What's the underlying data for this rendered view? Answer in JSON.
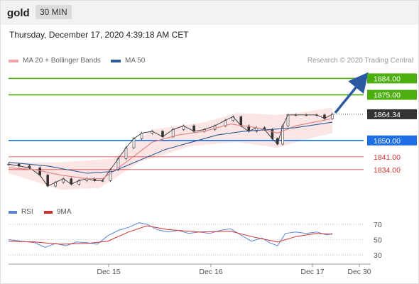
{
  "header": {
    "symbol": "gold",
    "timeframe": "30 MIN"
  },
  "timestamp": "Thursday, December 17, 2020 4:39:18 AM CET",
  "legend": {
    "ma20": "MA 20 + Bollinger Bands",
    "ma50": "MA 50",
    "credit": "Research © 2020 Trading Central",
    "ma20_color": "#f08080",
    "ma50_color": "#2c5a9a"
  },
  "rsi_legend": {
    "rsi": "RSI",
    "ma9": "9MA",
    "rsi_color": "#5b85d8",
    "ma9_color": "#d32f2f"
  },
  "chart_data": [
    {
      "type": "candlestick",
      "title": "gold 30 MIN",
      "x_tick_labels": [
        "Dec 15",
        "Dec 16",
        "Dec 17",
        "Dec 30"
      ],
      "ylim": [
        1818,
        1890
      ],
      "grid": false,
      "legend_position": "top-left",
      "price_levels": [
        {
          "label": "1884.00",
          "value": 1884.0,
          "color": "#4caf0f",
          "kind": "target"
        },
        {
          "label": "1875.00",
          "value": 1875.0,
          "color": "#4caf0f",
          "kind": "resistance"
        },
        {
          "label": "1864.34",
          "value": 1864.34,
          "color": "#333333",
          "kind": "last"
        },
        {
          "label": "1850.00",
          "value": 1850.0,
          "color": "#1e6ee6",
          "kind": "pivot"
        },
        {
          "label": "1841.00",
          "value": 1841.0,
          "color": "#d32f2f",
          "kind": "support"
        },
        {
          "label": "1834.00",
          "value": 1834.0,
          "color": "#d32f2f",
          "kind": "support"
        }
      ],
      "close_path": [
        {
          "x": 0,
          "y": 1837
        },
        {
          "x": 8,
          "y": 1836
        },
        {
          "x": 16,
          "y": 1835
        },
        {
          "x": 24,
          "y": 1831
        },
        {
          "x": 30,
          "y": 1825
        },
        {
          "x": 36,
          "y": 1827
        },
        {
          "x": 42,
          "y": 1829
        },
        {
          "x": 48,
          "y": 1826
        },
        {
          "x": 54,
          "y": 1828
        },
        {
          "x": 60,
          "y": 1829
        },
        {
          "x": 66,
          "y": 1828
        },
        {
          "x": 72,
          "y": 1828
        },
        {
          "x": 78,
          "y": 1834
        },
        {
          "x": 84,
          "y": 1840
        },
        {
          "x": 90,
          "y": 1846
        },
        {
          "x": 96,
          "y": 1851
        },
        {
          "x": 102,
          "y": 1854
        },
        {
          "x": 110,
          "y": 1855
        },
        {
          "x": 118,
          "y": 1852
        },
        {
          "x": 126,
          "y": 1856
        },
        {
          "x": 134,
          "y": 1858
        },
        {
          "x": 142,
          "y": 1855
        },
        {
          "x": 150,
          "y": 1856
        },
        {
          "x": 158,
          "y": 1858
        },
        {
          "x": 166,
          "y": 1861
        },
        {
          "x": 172,
          "y": 1863
        },
        {
          "x": 178,
          "y": 1858
        },
        {
          "x": 184,
          "y": 1855
        },
        {
          "x": 190,
          "y": 1857
        },
        {
          "x": 196,
          "y": 1856
        },
        {
          "x": 202,
          "y": 1851
        },
        {
          "x": 206,
          "y": 1848
        },
        {
          "x": 210,
          "y": 1858
        },
        {
          "x": 214,
          "y": 1864
        },
        {
          "x": 220,
          "y": 1864
        },
        {
          "x": 228,
          "y": 1864
        },
        {
          "x": 236,
          "y": 1864
        },
        {
          "x": 242,
          "y": 1862
        },
        {
          "x": 248,
          "y": 1864.34
        }
      ],
      "ma20_points": [
        {
          "x": 0,
          "y": 1835
        },
        {
          "x": 20,
          "y": 1834
        },
        {
          "x": 40,
          "y": 1831
        },
        {
          "x": 60,
          "y": 1829
        },
        {
          "x": 72,
          "y": 1829
        },
        {
          "x": 90,
          "y": 1838
        },
        {
          "x": 110,
          "y": 1849
        },
        {
          "x": 130,
          "y": 1853
        },
        {
          "x": 150,
          "y": 1855
        },
        {
          "x": 170,
          "y": 1859
        },
        {
          "x": 190,
          "y": 1857
        },
        {
          "x": 206,
          "y": 1854
        },
        {
          "x": 220,
          "y": 1858
        },
        {
          "x": 248,
          "y": 1862
        }
      ],
      "ma50_points": [
        {
          "x": 0,
          "y": 1838
        },
        {
          "x": 30,
          "y": 1836
        },
        {
          "x": 60,
          "y": 1832
        },
        {
          "x": 80,
          "y": 1833
        },
        {
          "x": 100,
          "y": 1839
        },
        {
          "x": 120,
          "y": 1845
        },
        {
          "x": 140,
          "y": 1849
        },
        {
          "x": 160,
          "y": 1853
        },
        {
          "x": 180,
          "y": 1855
        },
        {
          "x": 200,
          "y": 1856
        },
        {
          "x": 220,
          "y": 1857
        },
        {
          "x": 248,
          "y": 1860
        }
      ],
      "bollinger_upper": [
        {
          "x": 0,
          "y": 1838
        },
        {
          "x": 40,
          "y": 1838
        },
        {
          "x": 80,
          "y": 1840
        },
        {
          "x": 110,
          "y": 1856
        },
        {
          "x": 150,
          "y": 1860
        },
        {
          "x": 175,
          "y": 1865
        },
        {
          "x": 206,
          "y": 1864
        },
        {
          "x": 230,
          "y": 1866
        },
        {
          "x": 248,
          "y": 1868
        }
      ],
      "bollinger_lower": [
        {
          "x": 0,
          "y": 1832
        },
        {
          "x": 40,
          "y": 1823
        },
        {
          "x": 70,
          "y": 1824
        },
        {
          "x": 100,
          "y": 1838
        },
        {
          "x": 140,
          "y": 1847
        },
        {
          "x": 175,
          "y": 1849
        },
        {
          "x": 206,
          "y": 1846
        },
        {
          "x": 230,
          "y": 1851
        },
        {
          "x": 248,
          "y": 1854
        }
      ],
      "forecast_arrow": {
        "from": 1864.34,
        "to": 1884.0
      }
    },
    {
      "type": "line",
      "title": "RSI",
      "ylim": [
        20,
        80
      ],
      "y_ticks": [
        "70",
        "50",
        "30"
      ],
      "reference_levels": [
        70,
        50,
        30
      ],
      "series": [
        {
          "name": "RSI",
          "points": [
            {
              "x": 0,
              "y": 50
            },
            {
              "x": 10,
              "y": 48
            },
            {
              "x": 20,
              "y": 46
            },
            {
              "x": 28,
              "y": 40
            },
            {
              "x": 36,
              "y": 45
            },
            {
              "x": 44,
              "y": 42
            },
            {
              "x": 52,
              "y": 47
            },
            {
              "x": 60,
              "y": 46
            },
            {
              "x": 68,
              "y": 44
            },
            {
              "x": 76,
              "y": 55
            },
            {
              "x": 84,
              "y": 62
            },
            {
              "x": 92,
              "y": 66
            },
            {
              "x": 100,
              "y": 72
            },
            {
              "x": 106,
              "y": 70
            },
            {
              "x": 114,
              "y": 63
            },
            {
              "x": 122,
              "y": 60
            },
            {
              "x": 130,
              "y": 62
            },
            {
              "x": 138,
              "y": 58
            },
            {
              "x": 146,
              "y": 60
            },
            {
              "x": 154,
              "y": 58
            },
            {
              "x": 162,
              "y": 62
            },
            {
              "x": 170,
              "y": 64
            },
            {
              "x": 178,
              "y": 56
            },
            {
              "x": 186,
              "y": 48
            },
            {
              "x": 194,
              "y": 52
            },
            {
              "x": 200,
              "y": 46
            },
            {
              "x": 206,
              "y": 42
            },
            {
              "x": 212,
              "y": 58
            },
            {
              "x": 220,
              "y": 60
            },
            {
              "x": 228,
              "y": 58
            },
            {
              "x": 236,
              "y": 60
            },
            {
              "x": 244,
              "y": 56
            },
            {
              "x": 248,
              "y": 58
            }
          ]
        },
        {
          "name": "9MA",
          "points": [
            {
              "x": 0,
              "y": 48
            },
            {
              "x": 20,
              "y": 47
            },
            {
              "x": 40,
              "y": 44
            },
            {
              "x": 60,
              "y": 45
            },
            {
              "x": 76,
              "y": 48
            },
            {
              "x": 92,
              "y": 60
            },
            {
              "x": 106,
              "y": 68
            },
            {
              "x": 122,
              "y": 63
            },
            {
              "x": 146,
              "y": 60
            },
            {
              "x": 170,
              "y": 61
            },
            {
              "x": 186,
              "y": 54
            },
            {
              "x": 206,
              "y": 47
            },
            {
              "x": 220,
              "y": 54
            },
            {
              "x": 236,
              "y": 58
            },
            {
              "x": 248,
              "y": 57
            }
          ]
        }
      ]
    }
  ]
}
